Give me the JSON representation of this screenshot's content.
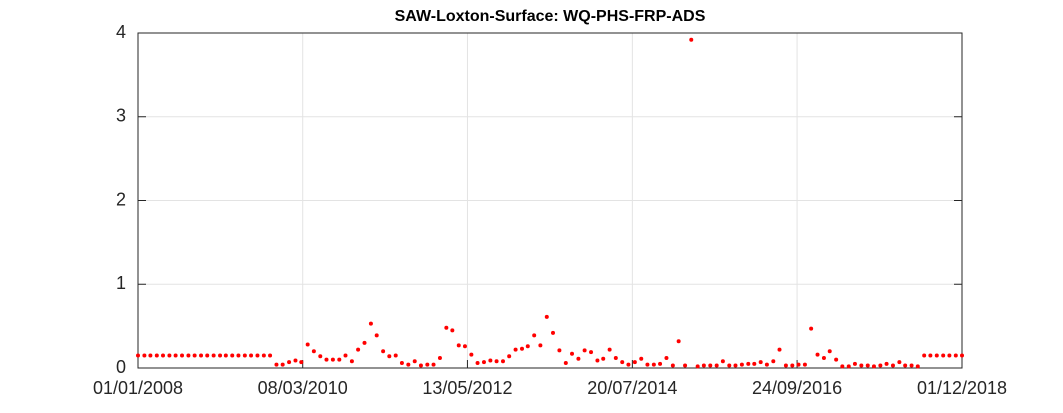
{
  "chart_data": {
    "type": "scatter",
    "title": "SAW-Loxton-Surface: WQ-PHS-FRP-ADS",
    "x": [
      "01/01/2008",
      "01/02/2008",
      "01/03/2008",
      "01/04/2008",
      "01/05/2008",
      "01/06/2008",
      "01/07/2008",
      "01/08/2008",
      "01/09/2008",
      "01/10/2008",
      "01/11/2008",
      "01/12/2008",
      "01/01/2009",
      "01/02/2009",
      "01/03/2009",
      "01/04/2009",
      "01/05/2009",
      "01/06/2009",
      "01/07/2009",
      "01/08/2009",
      "01/09/2009",
      "01/10/2009",
      "01/11/2009",
      "01/12/2009",
      "01/01/2010",
      "01/02/2010",
      "01/03/2010",
      "01/04/2010",
      "01/05/2010",
      "01/06/2010",
      "01/07/2010",
      "01/08/2010",
      "01/09/2010",
      "01/10/2010",
      "01/11/2010",
      "01/12/2010",
      "01/01/2011",
      "01/02/2011",
      "01/03/2011",
      "01/04/2011",
      "01/05/2011",
      "01/06/2011",
      "01/07/2011",
      "01/08/2011",
      "01/09/2011",
      "01/10/2011",
      "01/11/2011",
      "01/12/2011",
      "01/01/2012",
      "01/02/2012",
      "01/03/2012",
      "01/04/2012",
      "01/05/2012",
      "01/06/2012",
      "01/07/2012",
      "01/08/2012",
      "01/09/2012",
      "01/10/2012",
      "01/11/2012",
      "01/12/2012",
      "01/01/2013",
      "01/02/2013",
      "01/03/2013",
      "01/04/2013",
      "01/05/2013",
      "01/06/2013",
      "01/07/2013",
      "01/08/2013",
      "01/09/2013",
      "01/10/2013",
      "01/11/2013",
      "01/12/2013",
      "01/01/2014",
      "01/02/2014",
      "01/03/2014",
      "01/04/2014",
      "01/05/2014",
      "01/06/2014",
      "01/07/2014",
      "01/08/2014",
      "01/09/2014",
      "01/10/2014",
      "01/11/2014",
      "01/12/2014",
      "01/01/2015",
      "01/02/2015",
      "01/03/2015",
      "01/04/2015",
      "01/05/2015",
      "01/06/2015",
      "01/07/2015",
      "01/08/2015",
      "01/09/2015",
      "01/10/2015",
      "01/11/2015",
      "01/12/2015",
      "01/01/2016",
      "01/02/2016",
      "01/03/2016",
      "01/04/2016",
      "01/05/2016",
      "01/06/2016",
      "01/07/2016",
      "01/08/2016",
      "01/09/2016",
      "01/10/2016",
      "01/11/2016",
      "01/12/2016",
      "01/01/2017",
      "01/02/2017",
      "01/03/2017",
      "01/04/2017",
      "01/05/2017",
      "01/06/2017",
      "01/07/2017",
      "01/08/2017",
      "01/09/2017",
      "01/10/2017",
      "01/11/2017",
      "01/12/2017",
      "01/01/2018",
      "01/02/2018",
      "01/03/2018",
      "01/04/2018",
      "01/05/2018",
      "01/06/2018",
      "01/07/2018",
      "01/08/2018",
      "01/09/2018",
      "01/10/2018",
      "01/11/2018",
      "01/12/2018"
    ],
    "values": [
      0.15,
      0.15,
      0.15,
      0.15,
      0.15,
      0.15,
      0.15,
      0.15,
      0.15,
      0.15,
      0.15,
      0.15,
      0.15,
      0.15,
      0.15,
      0.15,
      0.15,
      0.15,
      0.15,
      0.15,
      0.15,
      0.15,
      0.04,
      0.04,
      0.07,
      0.09,
      0.07,
      0.28,
      0.2,
      0.14,
      0.1,
      0.1,
      0.1,
      0.15,
      0.08,
      0.22,
      0.3,
      0.53,
      0.39,
      0.2,
      0.14,
      0.15,
      0.06,
      0.04,
      0.08,
      0.03,
      0.04,
      0.04,
      0.12,
      0.48,
      0.45,
      0.27,
      0.26,
      0.16,
      0.06,
      0.07,
      0.09,
      0.08,
      0.08,
      0.14,
      0.22,
      0.23,
      0.26,
      0.39,
      0.27,
      0.61,
      0.42,
      0.21,
      0.06,
      0.17,
      0.11,
      0.21,
      0.19,
      0.09,
      0.11,
      0.22,
      0.12,
      0.07,
      0.04,
      0.07,
      0.11,
      0.04,
      0.04,
      0.05,
      0.12,
      0.03,
      0.32,
      0.03,
      3.92,
      0.02,
      0.03,
      0.03,
      0.03,
      0.08,
      0.03,
      0.03,
      0.04,
      0.05,
      0.05,
      0.07,
      0.04,
      0.08,
      0.22,
      0.03,
      0.03,
      0.04,
      0.04,
      0.47,
      0.16,
      0.12,
      0.2,
      0.1,
      0.02,
      0.02,
      0.05,
      0.03,
      0.03,
      0.02,
      0.03,
      0.05,
      0.03,
      0.07,
      0.03,
      0.03,
      0.02,
      0.15,
      0.15,
      0.15,
      0.15,
      0.15,
      0.15,
      0.15
    ],
    "color": "#ff0000",
    "xlim": [
      "01/01/2008",
      "01/12/2018"
    ],
    "xticks": [
      "01/01/2008",
      "08/03/2010",
      "13/05/2012",
      "20/07/2014",
      "24/09/2016",
      "01/12/2018"
    ],
    "ylim": [
      0,
      4
    ],
    "yticks": [
      0,
      1,
      2,
      3,
      4
    ],
    "grid": true
  }
}
